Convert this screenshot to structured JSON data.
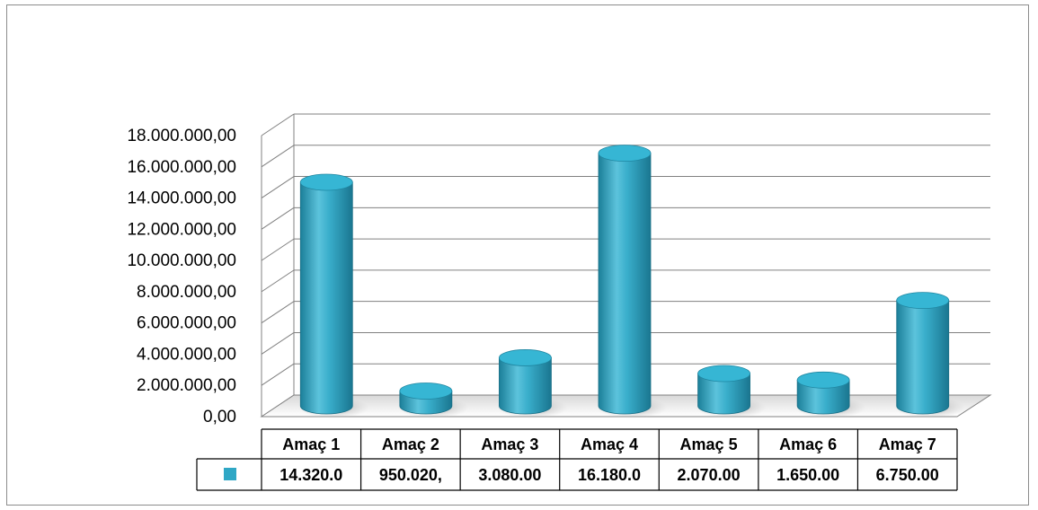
{
  "chart_data": {
    "type": "bar",
    "style": "3d-cylinder",
    "categories": [
      "Amaç 1",
      "Amaç 2",
      "Amaç 3",
      "Amaç 4",
      "Amaç 5",
      "Amaç 6",
      "Amaç 7"
    ],
    "series": [
      {
        "color": "#2fa7c5",
        "values": [
          14320000,
          950020,
          3080000,
          16180000,
          2070000,
          1650000,
          6750000
        ]
      }
    ],
    "table_values": [
      "14.320.0",
      "950.020,",
      "3.080.00",
      "16.180.0",
      "2.070.00",
      "1.650.00",
      "6.750.00"
    ],
    "y_ticks": [
      "0,00",
      "2.000.000,00",
      "4.000.000,00",
      "6.000.000,00",
      "8.000.000,00",
      "10.000.000,00",
      "12.000.000,00",
      "14.000.000,00",
      "16.000.000,00",
      "18.000.000,00"
    ],
    "ylim": [
      0,
      18000000
    ],
    "grid": true,
    "data_table": true,
    "legend": "data-table"
  }
}
